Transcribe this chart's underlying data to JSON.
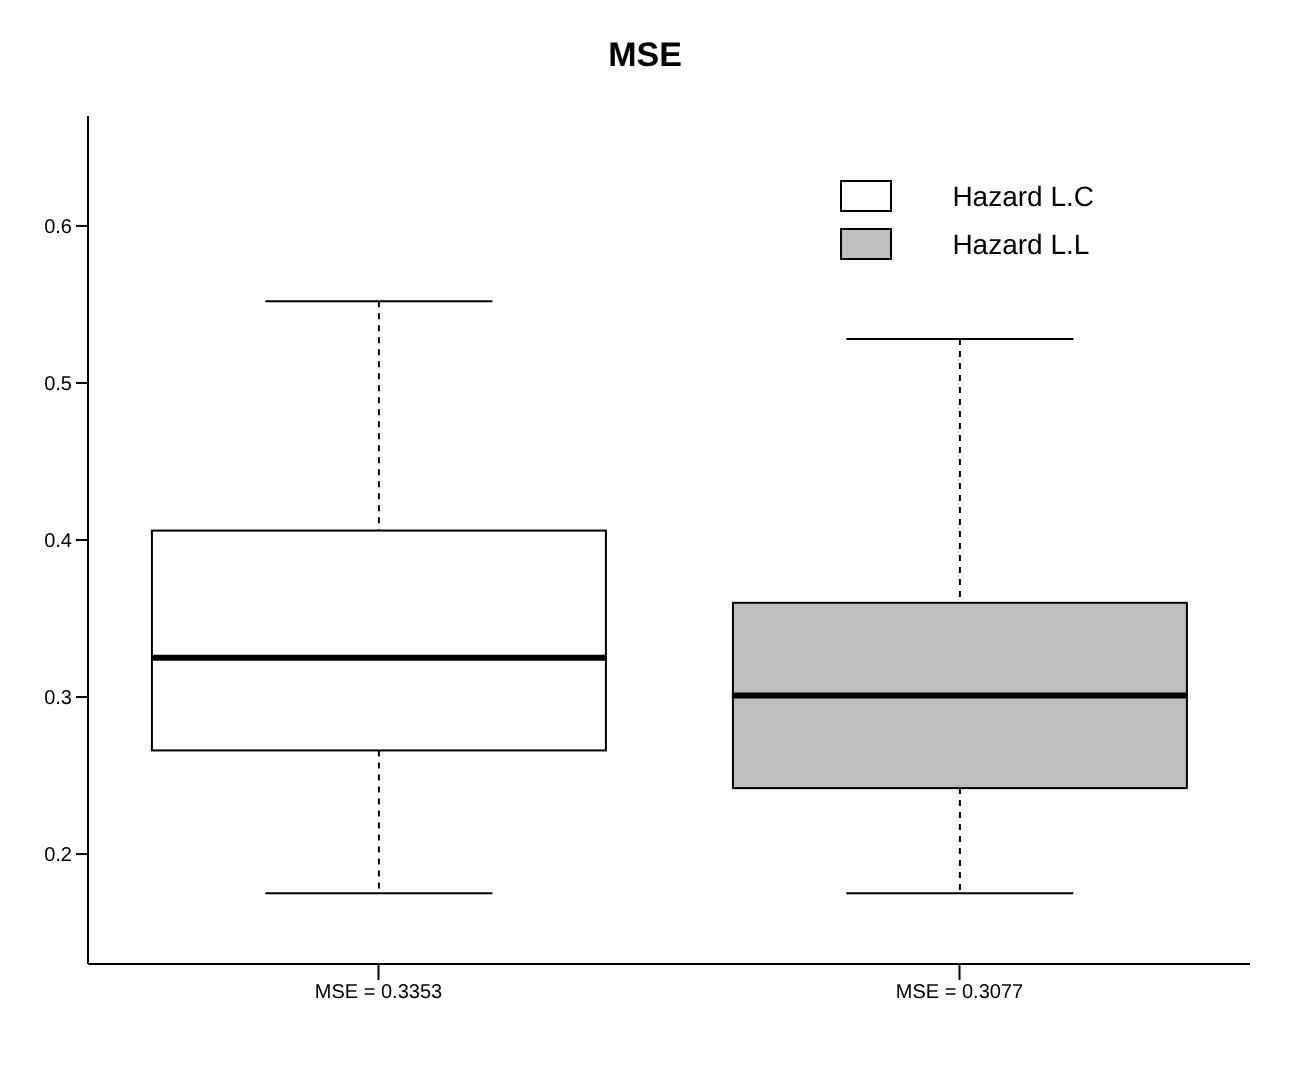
{
  "chart_data": {
    "type": "box",
    "title": "MSE",
    "categories": [
      "MSE =  0.3353",
      "MSE =  0.3077"
    ],
    "series": [
      {
        "name": "Hazard L.C",
        "color": "#ffffff",
        "boxes": [
          {
            "low": 0.175,
            "q1": 0.266,
            "median": 0.325,
            "q3": 0.406,
            "high": 0.552
          },
          null
        ]
      },
      {
        "name": "Hazard L.L",
        "color": "#bebebe",
        "boxes": [
          null,
          {
            "low": 0.175,
            "q1": 0.242,
            "median": 0.301,
            "q3": 0.36,
            "high": 0.528
          }
        ]
      }
    ],
    "ylim": [
      0.13,
      0.67
    ],
    "yticks": [
      0.2,
      0.3,
      0.4,
      0.5,
      0.6
    ],
    "grid": false,
    "legend": "top right"
  }
}
